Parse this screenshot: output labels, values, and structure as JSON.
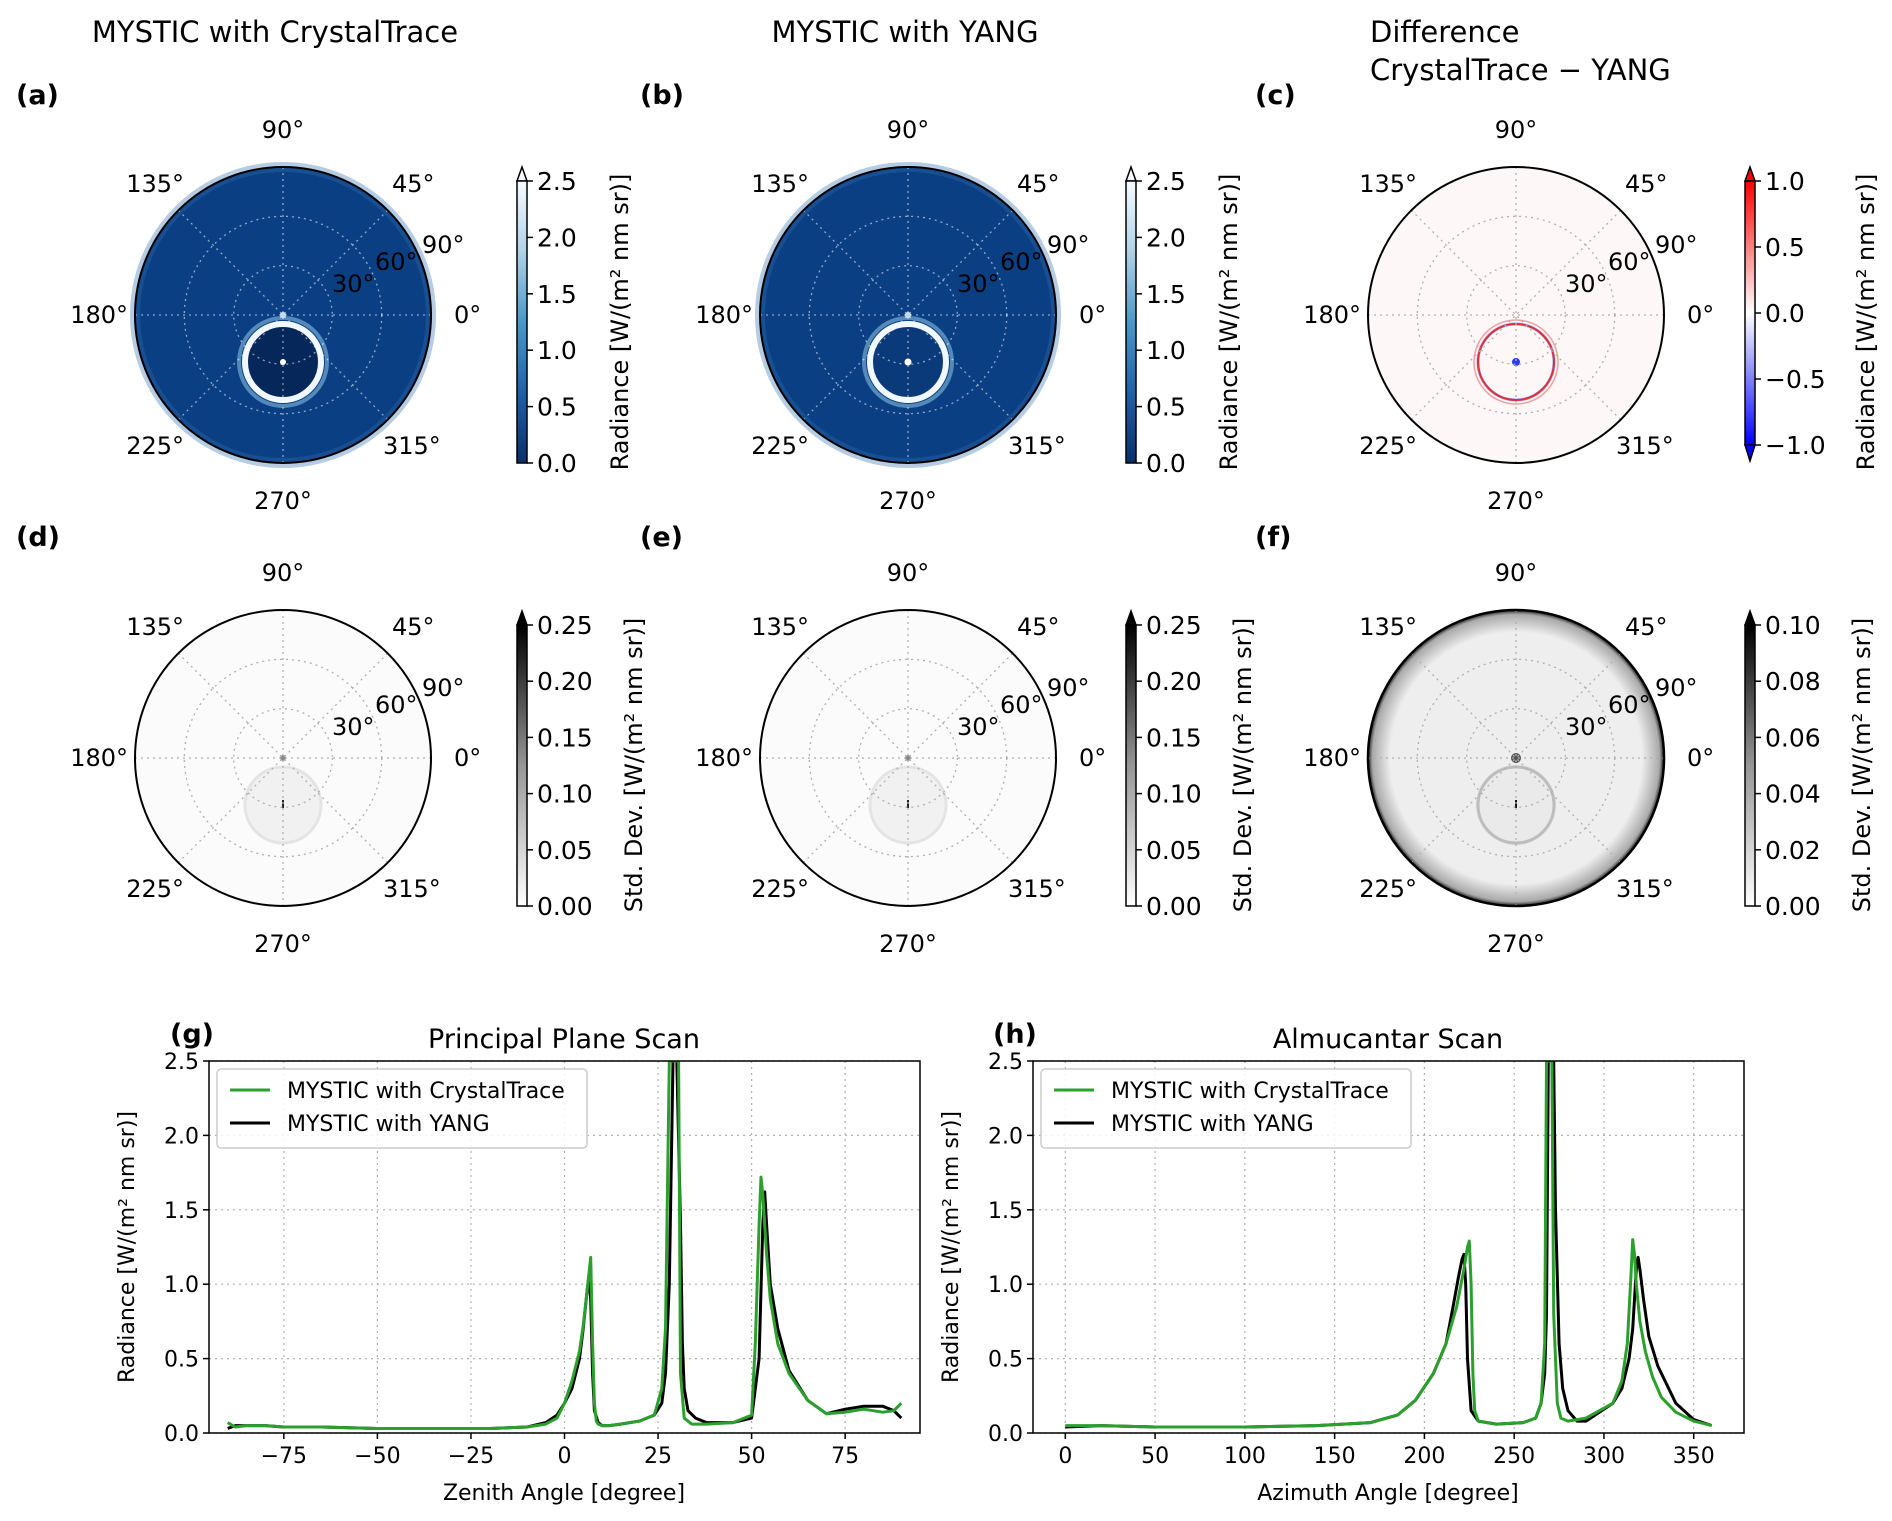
{
  "column_titles": [
    "MYSTIC with CrystalTrace",
    "MYSTIC with YANG",
    "Difference",
    "CrystalTrace − YANG"
  ],
  "panel_labels": [
    "(a)",
    "(b)",
    "(c)",
    "(d)",
    "(e)",
    "(f)",
    "(g)",
    "(h)"
  ],
  "polar_azimuth_labels": [
    "0°",
    "45°",
    "90°",
    "135°",
    "180°",
    "225°",
    "270°",
    "315°"
  ],
  "polar_radial_labels": [
    "30°",
    "60°",
    "90°"
  ],
  "colors": {
    "green": "#2ca02c",
    "black": "#000000",
    "polar_radiance_bg": "#0b3f83",
    "polar_std_bg": "#f8f8f8",
    "polar_diff_bg": "#fdf8f8",
    "grid": "#b0b0b0"
  },
  "chart_data": [
    {
      "id": "a",
      "type": "heatmap",
      "subtype": "polar",
      "colormap": "Blues_r",
      "extend": "max",
      "colorbar_label": "Radiance [W/(m² nm sr)]",
      "colorbar_ticks": [
        "0.0",
        "0.5",
        "1.0",
        "1.5",
        "2.0",
        "2.5"
      ],
      "clim": [
        0,
        2.5
      ]
    },
    {
      "id": "b",
      "type": "heatmap",
      "subtype": "polar",
      "colormap": "Blues_r",
      "extend": "max",
      "colorbar_label": "Radiance [W/(m² nm sr)]",
      "colorbar_ticks": [
        "0.0",
        "0.5",
        "1.0",
        "1.5",
        "2.0",
        "2.5"
      ],
      "clim": [
        0,
        2.5
      ]
    },
    {
      "id": "c",
      "type": "heatmap",
      "subtype": "polar",
      "colormap": "bwr",
      "extend": "both",
      "colorbar_label": "Radiance [W/(m² nm sr)]",
      "colorbar_ticks": [
        "−1.0",
        "−0.5",
        "0.0",
        "0.5",
        "1.0"
      ],
      "clim": [
        -1.0,
        1.0
      ]
    },
    {
      "id": "d",
      "type": "heatmap",
      "subtype": "polar",
      "colormap": "Greys",
      "extend": "max",
      "colorbar_label": "Std. Dev. [W/(m² nm sr)]",
      "colorbar_ticks": [
        "0.00",
        "0.05",
        "0.10",
        "0.15",
        "0.20",
        "0.25"
      ],
      "clim": [
        0,
        0.25
      ]
    },
    {
      "id": "e",
      "type": "heatmap",
      "subtype": "polar",
      "colormap": "Greys",
      "extend": "max",
      "colorbar_label": "Std. Dev. [W/(m² nm sr)]",
      "colorbar_ticks": [
        "0.00",
        "0.05",
        "0.10",
        "0.15",
        "0.20",
        "0.25"
      ],
      "clim": [
        0,
        0.25
      ]
    },
    {
      "id": "f",
      "type": "heatmap",
      "subtype": "polar",
      "colormap": "Greys",
      "extend": "max",
      "colorbar_label": "Std. Dev. [W/(m² nm sr)]",
      "colorbar_ticks": [
        "0.00",
        "0.02",
        "0.04",
        "0.06",
        "0.08",
        "0.10"
      ],
      "clim": [
        0,
        0.1
      ]
    },
    {
      "id": "g",
      "type": "line",
      "title": "Principal Plane Scan",
      "xlabel": "Zenith Angle [degree]",
      "ylabel": "Radiance [W/(m² nm sr)]",
      "xlim": [
        -95,
        95
      ],
      "ylim": [
        0,
        2.5
      ],
      "xticks": [
        -75,
        -50,
        -25,
        0,
        25,
        50,
        75
      ],
      "xtick_labels": [
        "−75",
        "−50",
        "−25",
        "0",
        "25",
        "50",
        "75"
      ],
      "yticks": [
        0,
        0.5,
        1.0,
        1.5,
        2.0,
        2.5
      ],
      "ytick_labels": [
        "0.0",
        "0.5",
        "1.0",
        "1.5",
        "2.0",
        "2.5"
      ],
      "grid": true,
      "legend": "top-left",
      "series": [
        {
          "name": "MYSTIC with CrystalTrace",
          "color": "#2ca02c",
          "x": [
            -90,
            -88,
            -85,
            -80,
            -75,
            -65,
            -50,
            -35,
            -20,
            -10,
            -5,
            -2,
            0,
            2,
            4,
            5,
            6,
            7,
            7.5,
            8,
            8.5,
            9,
            10,
            12,
            15,
            20,
            24,
            26,
            27,
            28,
            28.5,
            29,
            29.5,
            30,
            30.5,
            31,
            32,
            34,
            38,
            45,
            50,
            51,
            52,
            52.5,
            53,
            54,
            55,
            57,
            60,
            65,
            70,
            75,
            80,
            85,
            88,
            90
          ],
          "y": [
            0.07,
            0.04,
            0.05,
            0.05,
            0.04,
            0.04,
            0.03,
            0.03,
            0.03,
            0.04,
            0.06,
            0.1,
            0.2,
            0.35,
            0.55,
            0.72,
            0.95,
            1.18,
            0.6,
            0.2,
            0.08,
            0.06,
            0.05,
            0.05,
            0.06,
            0.08,
            0.12,
            0.3,
            0.7,
            2.5,
            2.5,
            2.5,
            2.5,
            2.5,
            2.5,
            0.4,
            0.1,
            0.06,
            0.06,
            0.07,
            0.12,
            0.6,
            1.4,
            1.72,
            1.6,
            1.2,
            0.9,
            0.6,
            0.4,
            0.22,
            0.13,
            0.14,
            0.16,
            0.14,
            0.15,
            0.2
          ]
        },
        {
          "name": "MYSTIC with YANG",
          "color": "#000000",
          "x": [
            -90,
            -88,
            -85,
            -80,
            -75,
            -65,
            -50,
            -35,
            -20,
            -10,
            -5,
            -2,
            0,
            2,
            4,
            5,
            6,
            6.5,
            7,
            7.5,
            8,
            9,
            10,
            12,
            15,
            20,
            24,
            26,
            27,
            28,
            29,
            30,
            31,
            31.5,
            32,
            33,
            35,
            38,
            45,
            50,
            52,
            53,
            53.5,
            54,
            55,
            57,
            60,
            65,
            70,
            75,
            80,
            85,
            88,
            90
          ],
          "y": [
            0.03,
            0.05,
            0.05,
            0.05,
            0.04,
            0.04,
            0.03,
            0.03,
            0.03,
            0.04,
            0.07,
            0.12,
            0.2,
            0.3,
            0.5,
            0.7,
            0.95,
            1.05,
            0.9,
            0.4,
            0.15,
            0.07,
            0.05,
            0.05,
            0.06,
            0.08,
            0.12,
            0.2,
            0.4,
            1.0,
            2.5,
            2.5,
            1.4,
            0.6,
            0.3,
            0.15,
            0.1,
            0.07,
            0.07,
            0.1,
            0.5,
            1.4,
            1.62,
            1.4,
            1.0,
            0.7,
            0.42,
            0.22,
            0.13,
            0.16,
            0.18,
            0.18,
            0.15,
            0.1
          ]
        }
      ]
    },
    {
      "id": "h",
      "type": "line",
      "title": "Almucantar Scan",
      "xlabel": "Azimuth Angle [degree]",
      "ylabel": "Radiance [W/(m² nm sr)]",
      "xlim": [
        -18,
        378
      ],
      "ylim": [
        0,
        2.5
      ],
      "xticks": [
        0,
        50,
        100,
        150,
        200,
        250,
        300,
        350
      ],
      "xtick_labels": [
        "0",
        "50",
        "100",
        "150",
        "200",
        "250",
        "300",
        "350"
      ],
      "yticks": [
        0,
        0.5,
        1.0,
        1.5,
        2.0,
        2.5
      ],
      "ytick_labels": [
        "0.0",
        "0.5",
        "1.0",
        "1.5",
        "2.0",
        "2.5"
      ],
      "grid": true,
      "legend": "top-left",
      "series": [
        {
          "name": "MYSTIC with CrystalTrace",
          "color": "#2ca02c",
          "x": [
            0,
            20,
            50,
            100,
            140,
            170,
            185,
            195,
            205,
            212,
            218,
            222,
            224,
            225,
            226,
            227,
            228,
            230,
            240,
            255,
            262,
            265,
            267,
            268,
            269,
            270,
            271,
            272,
            274,
            276,
            280,
            290,
            305,
            310,
            313,
            315,
            316,
            317,
            318,
            320,
            323,
            327,
            332,
            340,
            350,
            360
          ],
          "y": [
            0.05,
            0.05,
            0.04,
            0.04,
            0.05,
            0.07,
            0.12,
            0.22,
            0.4,
            0.6,
            0.85,
            1.1,
            1.25,
            1.29,
            1.0,
            0.4,
            0.15,
            0.08,
            0.06,
            0.07,
            0.1,
            0.2,
            0.6,
            2.5,
            2.5,
            2.5,
            2.5,
            0.8,
            0.2,
            0.1,
            0.08,
            0.1,
            0.2,
            0.35,
            0.6,
            1.05,
            1.3,
            1.2,
            1.0,
            0.75,
            0.55,
            0.38,
            0.24,
            0.14,
            0.08,
            0.05
          ]
        },
        {
          "name": "MYSTIC with YANG",
          "color": "#000000",
          "x": [
            0,
            20,
            50,
            100,
            140,
            170,
            185,
            195,
            205,
            212,
            216,
            219,
            221,
            222,
            223,
            224,
            226,
            230,
            240,
            255,
            262,
            265,
            267,
            268,
            269,
            270,
            271,
            272,
            273,
            275,
            277,
            280,
            285,
            290,
            305,
            310,
            314,
            316,
            318,
            319,
            320,
            322,
            325,
            330,
            340,
            350,
            360
          ],
          "y": [
            0.04,
            0.05,
            0.04,
            0.04,
            0.05,
            0.07,
            0.12,
            0.22,
            0.4,
            0.6,
            0.85,
            1.05,
            1.17,
            1.2,
            1.0,
            0.5,
            0.15,
            0.08,
            0.06,
            0.07,
            0.1,
            0.2,
            0.4,
            0.8,
            2.5,
            2.5,
            2.5,
            2.5,
            1.5,
            0.6,
            0.3,
            0.15,
            0.08,
            0.08,
            0.2,
            0.3,
            0.5,
            0.7,
            1.1,
            1.18,
            1.1,
            0.9,
            0.65,
            0.45,
            0.2,
            0.09,
            0.05
          ]
        }
      ]
    }
  ]
}
